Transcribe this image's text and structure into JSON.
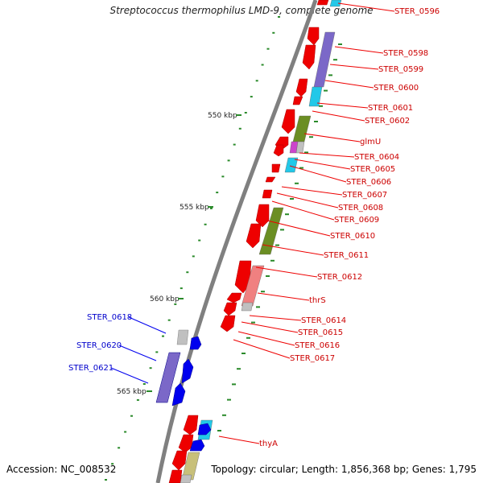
{
  "title": "Streptococcus thermophilus LMD-9, complete genome",
  "accession": "Accession: NC_008532",
  "topology": "Topology: circular; Length: 1,856,368 bp; Genes: 1,795",
  "scale_labels": [
    "550 kbp",
    "555 kbp",
    "560 kbp",
    "565 kbp"
  ],
  "right_labels": [
    "STER_0596",
    "STER_0598",
    "STER_0599",
    "STER_0600",
    "STER_0601",
    "STER_0602",
    "glmU",
    "STER_0604",
    "STER_0605",
    "STER_0606",
    "STER_0607",
    "STER_0608",
    "STER_0609",
    "STER_0610",
    "STER_0611",
    "STER_0612",
    "thrS",
    "STER_0614",
    "STER_0615",
    "STER_0616",
    "STER_0617",
    "thyA"
  ],
  "left_labels": [
    "STER_0618",
    "STER_0620",
    "STER_0621"
  ],
  "colors": {
    "forward_cds": "#ee0000",
    "reverse_cds": "#0000ee",
    "backbone": "#808080",
    "scale_dot": "#2a8a2a",
    "label_forward": "#cc0000",
    "label_reverse": "#0000cc",
    "cog_purple": "#7b68c8",
    "cog_cyan": "#22c8e8",
    "cog_olive": "#6b8e23",
    "cog_pink": "#f08080",
    "cog_grey": "#c0c0c0",
    "cog_khaki": "#c8c07a"
  }
}
